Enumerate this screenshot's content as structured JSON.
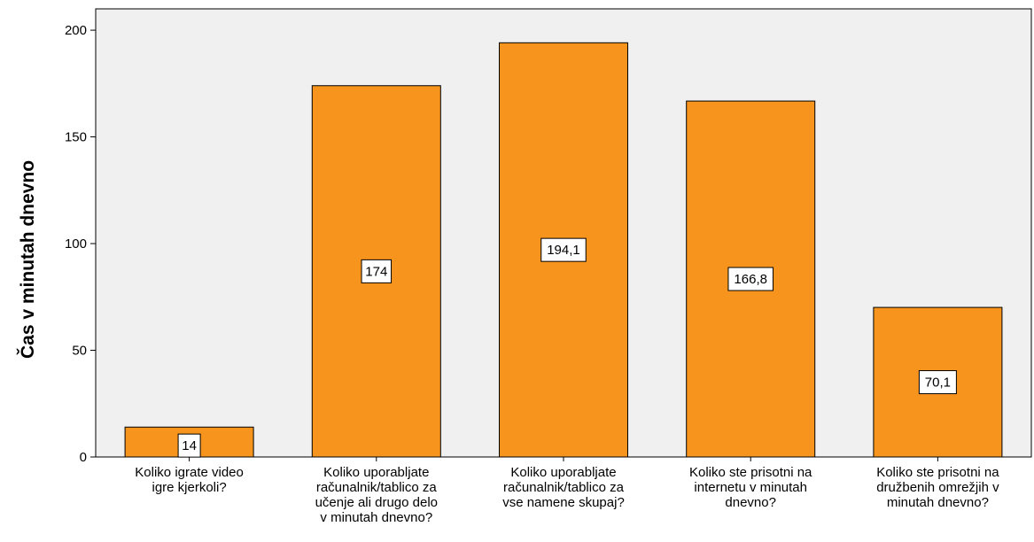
{
  "chart_data": {
    "type": "bar",
    "categories": [
      [
        "Koliko igrate video",
        "igre kjerkoli?"
      ],
      [
        "Koliko uporabljate",
        "računalnik/tablico za",
        "učenje ali drugo delo",
        "v minutah dnevno?"
      ],
      [
        "Koliko uporabljate",
        "računalnik/tablico za",
        "vse namene skupaj?"
      ],
      [
        "Koliko ste prisotni na",
        "internetu v minutah",
        "dnevno?"
      ],
      [
        "Koliko ste prisotni na",
        "družbenih omrežjih v",
        "minutah dnevno?"
      ]
    ],
    "values": [
      14,
      174,
      194.1,
      166.8,
      70.1
    ],
    "data_labels": [
      "14",
      "174",
      "194,1",
      "166,8",
      "70,1"
    ],
    "ylabel": "Čas v minutah dnevno",
    "ylim": [
      0,
      210
    ],
    "yticks": [
      0,
      50,
      100,
      150,
      200
    ],
    "grid": false,
    "bar_color": "#f7941d",
    "plot_background": "#f0f0f0"
  }
}
